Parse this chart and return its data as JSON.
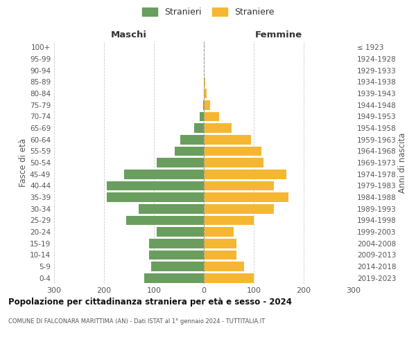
{
  "age_groups": [
    "0-4",
    "5-9",
    "10-14",
    "15-19",
    "20-24",
    "25-29",
    "30-34",
    "35-39",
    "40-44",
    "45-49",
    "50-54",
    "55-59",
    "60-64",
    "65-69",
    "70-74",
    "75-79",
    "80-84",
    "85-89",
    "90-94",
    "95-99",
    "100+"
  ],
  "birth_years": [
    "2019-2023",
    "2014-2018",
    "2009-2013",
    "2004-2008",
    "1999-2003",
    "1994-1998",
    "1989-1993",
    "1984-1988",
    "1979-1983",
    "1974-1978",
    "1969-1973",
    "1964-1968",
    "1959-1963",
    "1954-1958",
    "1949-1953",
    "1944-1948",
    "1939-1943",
    "1934-1938",
    "1929-1933",
    "1924-1928",
    "≤ 1923"
  ],
  "maschi": [
    120,
    105,
    110,
    110,
    95,
    155,
    130,
    195,
    195,
    160,
    95,
    58,
    47,
    20,
    8,
    2,
    0,
    0,
    0,
    0,
    0
  ],
  "femmine": [
    100,
    80,
    65,
    65,
    60,
    100,
    140,
    170,
    140,
    165,
    120,
    115,
    95,
    55,
    30,
    12,
    5,
    3,
    0,
    0,
    0
  ],
  "color_maschi": "#6a9e5e",
  "color_femmine": "#f5b731",
  "title": "Popolazione per cittadinanza straniera per età e sesso - 2024",
  "subtitle": "COMUNE DI FALCONARA MARITTIMA (AN) - Dati ISTAT al 1° gennaio 2024 - TUTTITALIA.IT",
  "label_maschi": "Stranieri",
  "label_femmine": "Straniere",
  "header_left": "Maschi",
  "header_right": "Femmine",
  "ylabel_left": "Fasce di età",
  "ylabel_right": "Anni di nascita",
  "xlim": 300,
  "bg_color": "#ffffff",
  "grid_color": "#cccccc"
}
